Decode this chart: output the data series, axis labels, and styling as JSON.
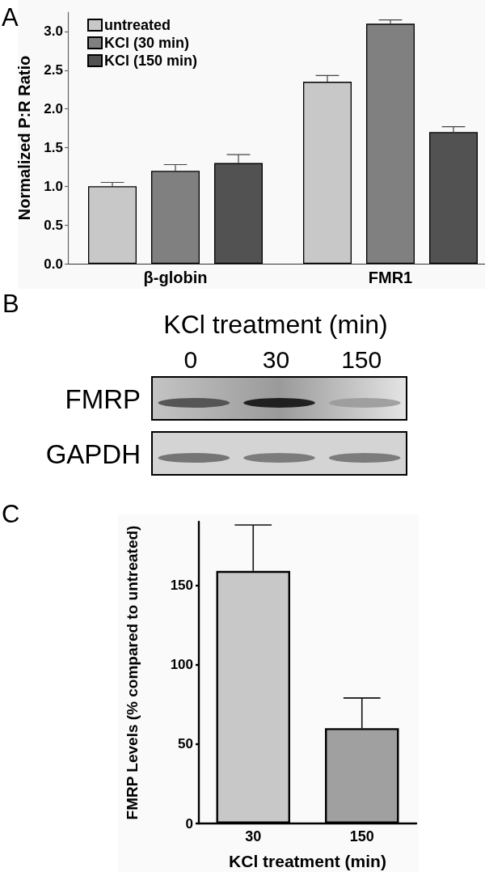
{
  "chart_data": [
    {
      "type": "bar",
      "categories": [
        "β-globin",
        "FMR1"
      ],
      "ylabel": "Normalized P:R Ratio",
      "series": [
        {
          "name": "untreated",
          "color": "#c8c8c8",
          "values": [
            1.0,
            2.35
          ],
          "errors": [
            [
              1.0,
              1.05
            ],
            [
              2.35,
              2.43
            ]
          ]
        },
        {
          "name": "KCl (30 min)",
          "color": "#808080",
          "values": [
            1.2,
            3.1
          ],
          "errors": [
            [
              1.2,
              1.28
            ],
            [
              3.1,
              3.15
            ]
          ]
        },
        {
          "name": "KCl (150 min)",
          "color": "#525252",
          "values": [
            1.3,
            1.7
          ],
          "errors": [
            [
              1.3,
              1.41
            ],
            [
              1.7,
              1.77
            ]
          ]
        }
      ],
      "ylim": [
        0,
        3.25
      ],
      "yticks": [
        {
          "value": 0,
          "label": "0.0"
        },
        0.5,
        {
          "value": 1,
          "label": "1.0"
        },
        1.5,
        {
          "value": 2,
          "label": "2.0"
        },
        2.5,
        {
          "value": 3,
          "label": "3.0"
        }
      ],
      "legend": "top left",
      "annotations": [
        "A"
      ]
    },
    {
      "type": "other",
      "title": "KCl treatment (min)",
      "categories": [
        "0",
        "30",
        "150"
      ],
      "y_categories": [
        "FMRP",
        "GAPDH"
      ],
      "annotations": [
        "B"
      ]
    },
    {
      "type": "bar",
      "categories": [
        "30",
        "150"
      ],
      "values": [
        159,
        60
      ],
      "colors": [
        "#c8c8c8",
        "#a0a0a0"
      ],
      "errors": [
        [
          159,
          188
        ],
        [
          60,
          79
        ]
      ],
      "xlabel": "KCl treatment (min)",
      "ylabel": "FMRP Levels (% compared to untreated)",
      "ylim": [
        0,
        190
      ],
      "yticks": [
        0,
        50,
        100,
        150
      ],
      "annotations": [
        "C"
      ]
    }
  ]
}
